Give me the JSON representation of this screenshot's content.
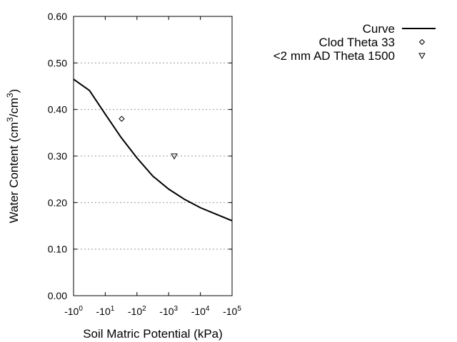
{
  "chart_data": {
    "type": "line",
    "title": "",
    "xlabel": "Soil Matric Potential (kPa)",
    "ylabel": {
      "prefix": "Water Content (cm",
      "sup1": "3",
      "mid": "/cm",
      "sup2": "3",
      "suffix": ")"
    },
    "x_scale": "log",
    "xlim": [
      -1,
      -100000
    ],
    "ylim": [
      0,
      0.6
    ],
    "grid": {
      "y": true,
      "x": false,
      "style": "dotted"
    },
    "x_ticks": [
      {
        "value": -1,
        "base": "-10",
        "exp": "0"
      },
      {
        "value": -10,
        "base": "-10",
        "exp": "1"
      },
      {
        "value": -100,
        "base": "-10",
        "exp": "2"
      },
      {
        "value": -1000,
        "base": "-10",
        "exp": "3"
      },
      {
        "value": -10000,
        "base": "-10",
        "exp": "4"
      },
      {
        "value": -100000,
        "base": "-10",
        "exp": "5"
      }
    ],
    "y_ticks": [
      {
        "value": 0.0,
        "label": "0.00"
      },
      {
        "value": 0.1,
        "label": "0.10"
      },
      {
        "value": 0.2,
        "label": "0.20"
      },
      {
        "value": 0.3,
        "label": "0.30"
      },
      {
        "value": 0.4,
        "label": "0.40"
      },
      {
        "value": 0.5,
        "label": "0.50"
      },
      {
        "value": 0.6,
        "label": "0.60"
      }
    ],
    "legend_placement": "top-right outside",
    "series": [
      {
        "name": "Curve",
        "kind": "line",
        "color": "#000000",
        "x": [
          -1,
          -3.16,
          -10,
          -31.6,
          -100,
          -316,
          -1000,
          -3162,
          -10000,
          -31623,
          -100000
        ],
        "y": [
          0.465,
          0.441,
          0.39,
          0.34,
          0.296,
          0.257,
          0.229,
          0.207,
          0.189,
          0.175,
          0.161
        ]
      },
      {
        "name": "Clod Theta 33",
        "kind": "scatter",
        "marker": "diamond",
        "color": "#000000",
        "x": [
          -33
        ],
        "y": [
          0.38
        ]
      },
      {
        "name": "<2 mm AD Theta 1500",
        "kind": "scatter",
        "marker": "triangle-down",
        "color": "#000000",
        "x": [
          -1500
        ],
        "y": [
          0.3
        ]
      }
    ]
  }
}
